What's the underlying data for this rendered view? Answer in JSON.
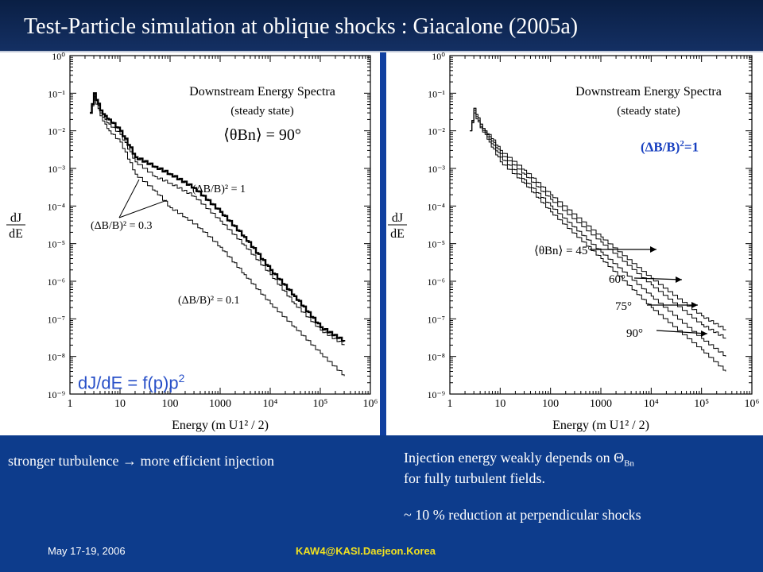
{
  "slide": {
    "title": "Test-Particle simulation at oblique shocks : Giacalone (2005a)",
    "formula_main": "dJ/dE = f(p)p",
    "formula_sup": "2",
    "delta_note_main": "(ΔB/B)",
    "delta_note_sup": "2",
    "delta_note_tail": "=1",
    "left_caption": "stronger turbulence → more efficient injection",
    "right_caption_line1": "Injection energy weakly depends on Θ",
    "right_caption_sub": "Bn",
    "right_caption_line2": "for fully turbulent fields.",
    "right_caption_line3": "~ 10 % reduction at perpendicular shocks",
    "footer_date": "May 17-19, 2006",
    "footer_conference": "KAW4@KASI.Daejeon.Korea",
    "colors": {
      "background": "#0d3c8c",
      "title_bar": "#0a1f44",
      "accent_blue": "#2850c8",
      "footer_yellow": "#f0e020"
    }
  },
  "chart_data": [
    {
      "type": "line",
      "title": "Downstream Energy Spectra",
      "subtitle": "(steady state)",
      "angle_label": "⟨θBn⟩ = 90°",
      "xlabel": "Energy (m U1² / 2)",
      "ylabel": "dJ / dE",
      "xscale": "log",
      "yscale": "log",
      "xlim": [
        1,
        1000000
      ],
      "ylim": [
        1e-09,
        1
      ],
      "x_tick_labels": [
        "1",
        "10",
        "100",
        "1000",
        "10⁴",
        "10⁵",
        "10⁶"
      ],
      "y_tick_labels": [
        "10⁰",
        "10⁻¹",
        "10⁻²",
        "10⁻³",
        "10⁻⁴",
        "10⁻⁵",
        "10⁻⁶",
        "10⁻⁷",
        "10⁻⁸",
        "10⁻⁹"
      ],
      "series": [
        {
          "name": "(ΔB/B)² = 1",
          "bold": true,
          "x": [
            2.5,
            3,
            4,
            5,
            6,
            10,
            20,
            50,
            100,
            300,
            1000,
            3000,
            10000,
            30000,
            100000,
            300000
          ],
          "y": [
            0.03,
            0.1,
            0.035,
            0.025,
            0.02,
            0.01,
            0.002,
            0.0011,
            0.0007,
            0.0003,
            7e-05,
            1.5e-05,
            2e-06,
            4e-07,
            6e-08,
            2.5e-08
          ]
        },
        {
          "name": "(ΔB/B)² = 0.3",
          "bold": false,
          "x": [
            2.5,
            3,
            4,
            5,
            6,
            10,
            20,
            50,
            100,
            300,
            1000,
            3000,
            10000,
            30000,
            100000,
            300000
          ],
          "y": [
            0.03,
            0.1,
            0.03,
            0.02,
            0.015,
            0.008,
            0.0015,
            0.0006,
            0.0004,
            0.00018,
            4e-05,
            9e-06,
            1.5e-06,
            2.5e-07,
            5e-08,
            2e-08
          ]
        },
        {
          "name": "(ΔB/B)² = 0.1",
          "bold": false,
          "x": [
            2.5,
            3,
            4,
            5,
            6,
            10,
            20,
            50,
            100,
            200,
            400,
            1000,
            3000,
            10000,
            30000,
            100000,
            300000
          ],
          "y": [
            0.03,
            0.08,
            0.025,
            0.015,
            0.01,
            0.005,
            0.0007,
            0.00025,
            9e-05,
            5e-05,
            2.5e-05,
            8e-06,
            1.5e-06,
            2.5e-07,
            6e-08,
            1.2e-08,
            3e-09
          ]
        }
      ],
      "annotations": [
        "(ΔB/B)² = 1",
        "(ΔB/B)² = 0.3",
        "(ΔB/B)² = 0.1"
      ]
    },
    {
      "type": "line",
      "title": "Downstream Energy Spectra",
      "subtitle": "(steady state)",
      "xlabel": "Energy (m U1² / 2)",
      "ylabel": "dJ / dE",
      "xscale": "log",
      "yscale": "log",
      "xlim": [
        1,
        1000000
      ],
      "ylim": [
        1e-09,
        1
      ],
      "x_tick_labels": [
        "1",
        "10",
        "100",
        "1000",
        "10⁴",
        "10⁵",
        "10⁶"
      ],
      "y_tick_labels": [
        "10⁰",
        "10⁻¹",
        "10⁻²",
        "10⁻³",
        "10⁻⁴",
        "10⁻⁵",
        "10⁻⁶",
        "10⁻⁷",
        "10⁻⁸",
        "10⁻⁹"
      ],
      "series": [
        {
          "name": "⟨θBn⟩ = 45°",
          "x": [
            2.5,
            3,
            4,
            5,
            6,
            10,
            30,
            100,
            1000,
            10000,
            100000,
            300000
          ],
          "y": [
            0.01,
            0.04,
            0.015,
            0.01,
            0.008,
            0.003,
            0.0009,
            0.0002,
            1.5e-05,
            1.2e-06,
            1.2e-07,
            5e-08
          ]
        },
        {
          "name": "60°",
          "x": [
            2.5,
            3,
            4,
            5,
            6,
            10,
            30,
            100,
            1000,
            10000,
            100000,
            300000
          ],
          "y": [
            0.01,
            0.04,
            0.015,
            0.01,
            0.007,
            0.0025,
            0.0007,
            0.00015,
            1.1e-05,
            8e-07,
            7e-08,
            3e-08
          ]
        },
        {
          "name": "75°",
          "x": [
            2.5,
            3,
            4,
            5,
            6,
            10,
            30,
            100,
            1000,
            10000,
            100000,
            300000
          ],
          "y": [
            0.01,
            0.035,
            0.013,
            0.009,
            0.006,
            0.002,
            0.0005,
            0.0001,
            6e-06,
            4e-07,
            3e-08,
            1e-08
          ]
        },
        {
          "name": "90°",
          "x": [
            2.5,
            3,
            4,
            5,
            6,
            10,
            30,
            100,
            1000,
            10000,
            100000,
            300000
          ],
          "y": [
            0.01,
            0.03,
            0.012,
            0.008,
            0.005,
            0.0015,
            0.0004,
            7e-05,
            4e-06,
            2e-07,
            1.5e-08,
            4e-09
          ]
        }
      ],
      "annotations": [
        "⟨θBn⟩ = 45°",
        "60°",
        "75°",
        "90°"
      ]
    }
  ]
}
